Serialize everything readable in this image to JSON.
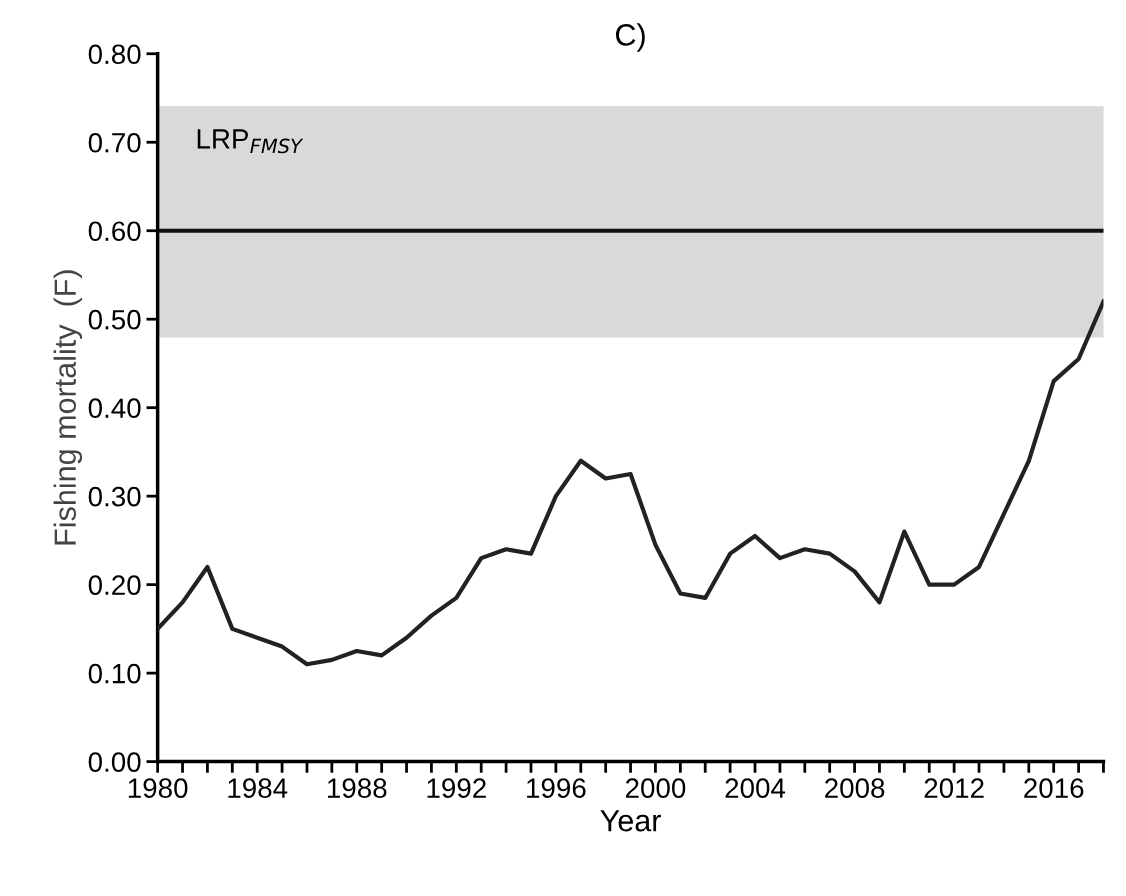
{
  "chart_data": {
    "type": "line",
    "title": "C)",
    "xlabel": "Year",
    "ylabel": "Fishing mortality  (F)",
    "x": [
      1980,
      1981,
      1982,
      1983,
      1984,
      1985,
      1986,
      1987,
      1988,
      1989,
      1990,
      1991,
      1992,
      1993,
      1994,
      1995,
      1996,
      1997,
      1998,
      1999,
      2000,
      2001,
      2002,
      2003,
      2004,
      2005,
      2006,
      2007,
      2008,
      2009,
      2010,
      2011,
      2012,
      2013,
      2014,
      2015,
      2016,
      2017,
      2018
    ],
    "series": [
      {
        "color": "#222222",
        "values": [
          0.15,
          0.18,
          0.22,
          0.15,
          0.14,
          0.13,
          0.11,
          0.115,
          0.125,
          0.12,
          0.14,
          0.165,
          0.185,
          0.23,
          0.24,
          0.235,
          0.3,
          0.34,
          0.32,
          0.325,
          0.245,
          0.19,
          0.185,
          0.235,
          0.255,
          0.23,
          0.24,
          0.235,
          0.215,
          0.18,
          0.26,
          0.2,
          0.2,
          0.22,
          0.28,
          0.34,
          0.43,
          0.455,
          0.52
        ]
      }
    ],
    "xlim": [
      1980,
      2018
    ],
    "xticks": [
      1980,
      {
        "value": 1981,
        "label": null
      },
      {
        "value": 1982,
        "label": null
      },
      {
        "value": 1983,
        "label": null
      },
      1984,
      {
        "value": 1985,
        "label": null
      },
      {
        "value": 1986,
        "label": null
      },
      {
        "value": 1987,
        "label": null
      },
      1988,
      {
        "value": 1989,
        "label": null
      },
      {
        "value": 1990,
        "label": null
      },
      {
        "value": 1991,
        "label": null
      },
      1992,
      {
        "value": 1993,
        "label": null
      },
      {
        "value": 1994,
        "label": null
      },
      {
        "value": 1995,
        "label": null
      },
      1996,
      {
        "value": 1997,
        "label": null
      },
      {
        "value": 1998,
        "label": null
      },
      {
        "value": 1999,
        "label": null
      },
      2000,
      {
        "value": 2001,
        "label": null
      },
      {
        "value": 2002,
        "label": null
      },
      {
        "value": 2003,
        "label": null
      },
      2004,
      {
        "value": 2005,
        "label": null
      },
      {
        "value": 2006,
        "label": null
      },
      {
        "value": 2007,
        "label": null
      },
      2008,
      {
        "value": 2009,
        "label": null
      },
      {
        "value": 2010,
        "label": null
      },
      {
        "value": 2011,
        "label": null
      },
      2012,
      {
        "value": 2013,
        "label": null
      },
      {
        "value": 2014,
        "label": null
      },
      {
        "value": 2015,
        "label": null
      },
      2016,
      {
        "value": 2017,
        "label": null
      },
      {
        "value": 2018,
        "label": null
      }
    ],
    "ylim": [
      0,
      0.8
    ],
    "yticks": [
      {
        "value": 0,
        "label": "0.00"
      },
      {
        "value": 0.1,
        "label": "0.10"
      },
      {
        "value": 0.2,
        "label": "0.20"
      },
      {
        "value": 0.3,
        "label": "0.30"
      },
      {
        "value": 0.4,
        "label": "0.40"
      },
      {
        "value": 0.5,
        "label": "0.50"
      },
      {
        "value": 0.6,
        "label": "0.60"
      },
      {
        "value": 0.7,
        "label": "0.70"
      },
      {
        "value": 0.8,
        "label": "0.80"
      }
    ],
    "ref_lines": [
      {
        "axis": "y",
        "value": 0.6,
        "color": "#111111"
      }
    ],
    "bands": [
      {
        "axis": "y",
        "from": 0.48,
        "to": 0.74,
        "label": "LRP$_{FMSY}$",
        "color": "#d9d9d9"
      }
    ],
    "grid": false,
    "legend": false,
    "marker": "none",
    "line_style": "solid"
  }
}
